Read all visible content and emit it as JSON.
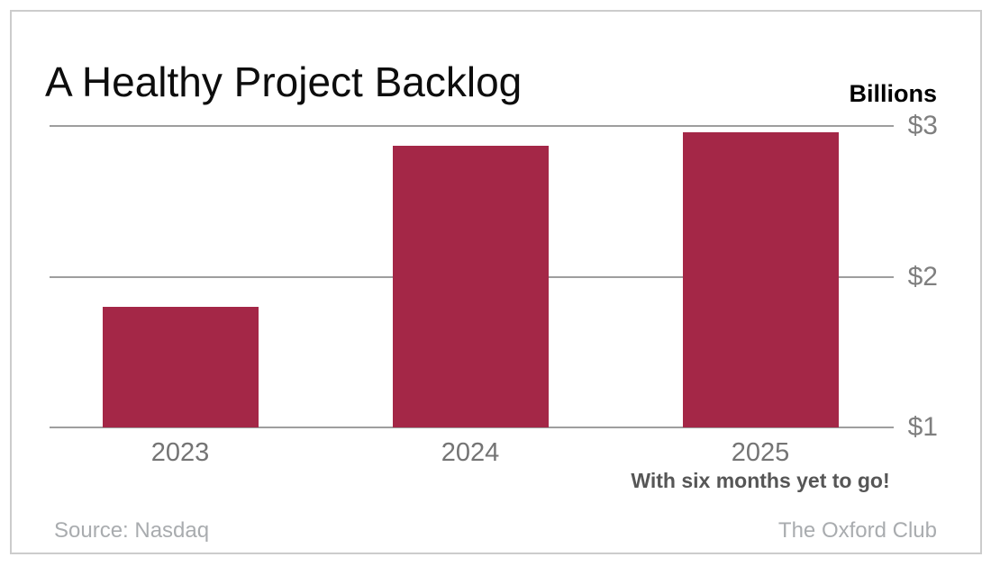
{
  "chart_data": {
    "type": "bar",
    "title": "A Healthy Project Backlog",
    "unit_label": "Billions",
    "categories": [
      "2023",
      "2024",
      "2025"
    ],
    "values": [
      1.8,
      2.87,
      2.96
    ],
    "xlabel": "",
    "ylabel": "Billions",
    "ylim": [
      1,
      3
    ],
    "y_ticks": [
      {
        "label": "$3",
        "value": 3
      },
      {
        "label": "$2",
        "value": 2
      },
      {
        "label": "$1",
        "value": 1
      }
    ],
    "grid": true,
    "legend_position": "none",
    "bar_color": "#A42747",
    "annotation": {
      "text": "With six months yet to go!",
      "category_index": 2
    }
  },
  "footer": {
    "source": "Source: Nasdaq",
    "brand": "The Oxford Club"
  }
}
